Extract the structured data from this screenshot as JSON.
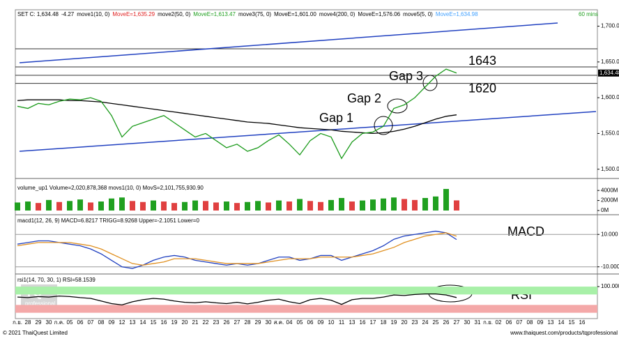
{
  "header": [
    {
      "text": "SET C: 1,634.48",
      "color": "#000000"
    },
    {
      "text": "-4.27",
      "color": "#000000"
    },
    {
      "text": "move1(10, 0)",
      "color": "#000000"
    },
    {
      "text": "MoveE=1,635.29",
      "color": "#e02020"
    },
    {
      "text": "move2(50, 0)",
      "color": "#000000"
    },
    {
      "text": "MoveE=1,613.47",
      "color": "#20a020"
    },
    {
      "text": "move3(75, 0)",
      "color": "#000000"
    },
    {
      "text": "MoveE=1,601.00",
      "color": "#000000"
    },
    {
      "text": "move4(200, 0)",
      "color": "#000000"
    },
    {
      "text": "MoveE=1,576.06",
      "color": "#000000"
    },
    {
      "text": "move5(5, 0)",
      "color": "#000000"
    },
    {
      "text": "MoveE=1,634.98",
      "color": "#40a0ff"
    }
  ],
  "interval": "60 mins",
  "footer_left": "© 2021 ThaiQuest Limited",
  "footer_right": "www.thaiquest.com/products/tqprofessional",
  "logo_text": [
    "TQ",
    "professional"
  ],
  "chart_data": [
    {
      "type": "line",
      "ylim": [
        1488,
        1722
      ],
      "yticks": [
        {
          "value": 1700,
          "label": "1,700.00"
        },
        {
          "value": 1650,
          "label": "1,650.00"
        },
        {
          "value": 1600,
          "label": "1,600.00"
        },
        {
          "value": 1550,
          "label": "1,550.00"
        },
        {
          "value": 1500,
          "label": "1,500.00"
        }
      ],
      "price_tag": {
        "value": 1634.48,
        "label": "1,634.48"
      },
      "levels": [
        1643,
        1620
      ],
      "annotations": [
        "Gap 1",
        "Gap 2",
        "Gap 3"
      ],
      "categories": [
        "ก.ย.",
        "28",
        "29",
        "30",
        "ก.ค.",
        "05",
        "06",
        "07",
        "08",
        "09",
        "12",
        "13",
        "14",
        "15",
        "16",
        "19",
        "20",
        "21",
        "22",
        "23",
        "26",
        "27",
        "28",
        "29",
        "30",
        "ส.ค.",
        "04",
        "05",
        "06",
        "09",
        "10",
        "11",
        "13",
        "16",
        "17",
        "18",
        "19",
        "20",
        "23",
        "24",
        "25",
        "26",
        "27",
        "30",
        "31",
        "ก.ย.",
        "02",
        "06",
        "07",
        "08",
        "09",
        "13",
        "14",
        "15",
        "16",
        null
      ],
      "series": [
        {
          "name": "move4(200, 0)",
          "color": "#000000",
          "values": [
            1596,
            1597,
            1597,
            1597,
            1597,
            1596,
            1596,
            1595,
            1594,
            1592,
            1590,
            1588,
            1586,
            1584,
            1582,
            1580,
            1578,
            1576,
            1574,
            1572,
            1570,
            1568,
            1566,
            1565,
            1564,
            1562,
            1560,
            1558,
            1557,
            1556,
            1555,
            1553,
            1552,
            1551,
            1550,
            1551,
            1553,
            1556,
            1560,
            1565,
            1570,
            1574,
            1576.06,
            null,
            null,
            null,
            null,
            null,
            null,
            null,
            null,
            null,
            null,
            null,
            null,
            null
          ]
        },
        {
          "name": "SET C",
          "color": "#1a9a1a",
          "values": [
            1588,
            1585,
            1592,
            1590,
            1595,
            1598,
            1597,
            1600,
            1595,
            1575,
            1545,
            1560,
            1565,
            1570,
            1575,
            1565,
            1555,
            1545,
            1550,
            1540,
            1530,
            1535,
            1525,
            1530,
            1540,
            1548,
            1535,
            1520,
            1540,
            1550,
            1545,
            1515,
            1538,
            1550,
            1552,
            1560,
            1585,
            1590,
            1600,
            1615,
            1630,
            1640,
            1634.48,
            null,
            null,
            null,
            null,
            null,
            null,
            null,
            null,
            null,
            null,
            null,
            null,
            null
          ]
        }
      ]
    },
    {
      "type": "bar",
      "title": "volume_up1 Volume=2,020,878,368 movs1(10, 0) MovS=2,101,755,930.90",
      "ylim": [
        -700,
        5000
      ],
      "yticks": [
        {
          "value": 4000,
          "label": "4000M"
        },
        {
          "value": 2000,
          "label": "2000M"
        },
        {
          "value": 0,
          "label": "0M"
        }
      ],
      "series": [
        {
          "name": "Volume",
          "color": "#20a020",
          "values": [
            1600,
            1800,
            1500,
            2100,
            1700,
            1900,
            2200,
            1600,
            1800,
            2400,
            2600,
            1900,
            1700,
            2000,
            1800,
            1500,
            1700,
            2000,
            1900,
            1600,
            1800,
            1500,
            1700,
            1900,
            1600,
            2000,
            1800,
            2300,
            1900,
            1700,
            2100,
            2500,
            1800,
            2000,
            2200,
            2400,
            2600,
            2300,
            2100,
            2500,
            2800,
            4300,
            2020.878368,
            null,
            null,
            null,
            null,
            null,
            null,
            null,
            null,
            null,
            null,
            null,
            null,
            null
          ]
        }
      ]
    },
    {
      "type": "line",
      "title": "macd1(12, 26, 9) MACD=6.8217 TRIGG=8.9268 Upper=-2.1051 Lower=0",
      "ylim": [
        -14,
        20
      ],
      "yticks": [
        {
          "value": 10,
          "label": "10.000"
        },
        {
          "value": -10,
          "label": "-10.000"
        }
      ],
      "annotations": [
        "MACD"
      ],
      "series": [
        {
          "name": "MACD",
          "color": "#2040c0",
          "values": [
            4,
            5,
            6,
            6,
            5,
            4,
            3,
            1,
            -2,
            -6,
            -10,
            -11,
            -9,
            -6,
            -4,
            -3,
            -4,
            -6,
            -7,
            -8,
            -9,
            -8,
            -9,
            -8,
            -6,
            -4,
            -4,
            -6,
            -5,
            -3,
            -3,
            -6,
            -4,
            -2,
            0,
            3,
            7,
            9,
            10,
            11,
            12,
            11,
            6.8217,
            null,
            null,
            null,
            null,
            null,
            null,
            null,
            null,
            null,
            null,
            null,
            null,
            null
          ]
        },
        {
          "name": "TRIGG",
          "color": "#e09020",
          "values": [
            3,
            4,
            5,
            5,
            5,
            5,
            4,
            3,
            1,
            -2,
            -5,
            -8,
            -9,
            -8,
            -7,
            -5,
            -5,
            -5,
            -6,
            -7,
            -8,
            -8,
            -8,
            -8,
            -7,
            -6,
            -5,
            -5,
            -5,
            -4,
            -4,
            -4,
            -4,
            -3,
            -2,
            0,
            2,
            5,
            7,
            9,
            10,
            11,
            8.9268,
            null,
            null,
            null,
            null,
            null,
            null,
            null,
            null,
            null,
            null,
            null,
            null,
            null
          ]
        }
      ]
    },
    {
      "type": "line",
      "title": "rsi1(14, 70, 30, 1) RSI=58.1539",
      "ylim": [
        -17,
        135
      ],
      "yticks": [
        {
          "value": 100,
          "label": "100.000"
        }
      ],
      "bands": [
        30,
        70
      ],
      "annotations": [
        "RSI"
      ],
      "series": [
        {
          "name": "RSI",
          "color": "#000000",
          "values": [
            60,
            58,
            62,
            60,
            64,
            62,
            58,
            55,
            45,
            35,
            30,
            42,
            50,
            55,
            52,
            45,
            40,
            38,
            42,
            38,
            35,
            40,
            34,
            40,
            48,
            52,
            42,
            35,
            50,
            55,
            48,
            32,
            50,
            55,
            55,
            60,
            68,
            66,
            70,
            72,
            72,
            68,
            58.1539,
            null,
            null,
            null,
            null,
            null,
            null,
            null,
            null,
            null,
            null,
            null,
            null,
            null
          ]
        }
      ]
    }
  ]
}
